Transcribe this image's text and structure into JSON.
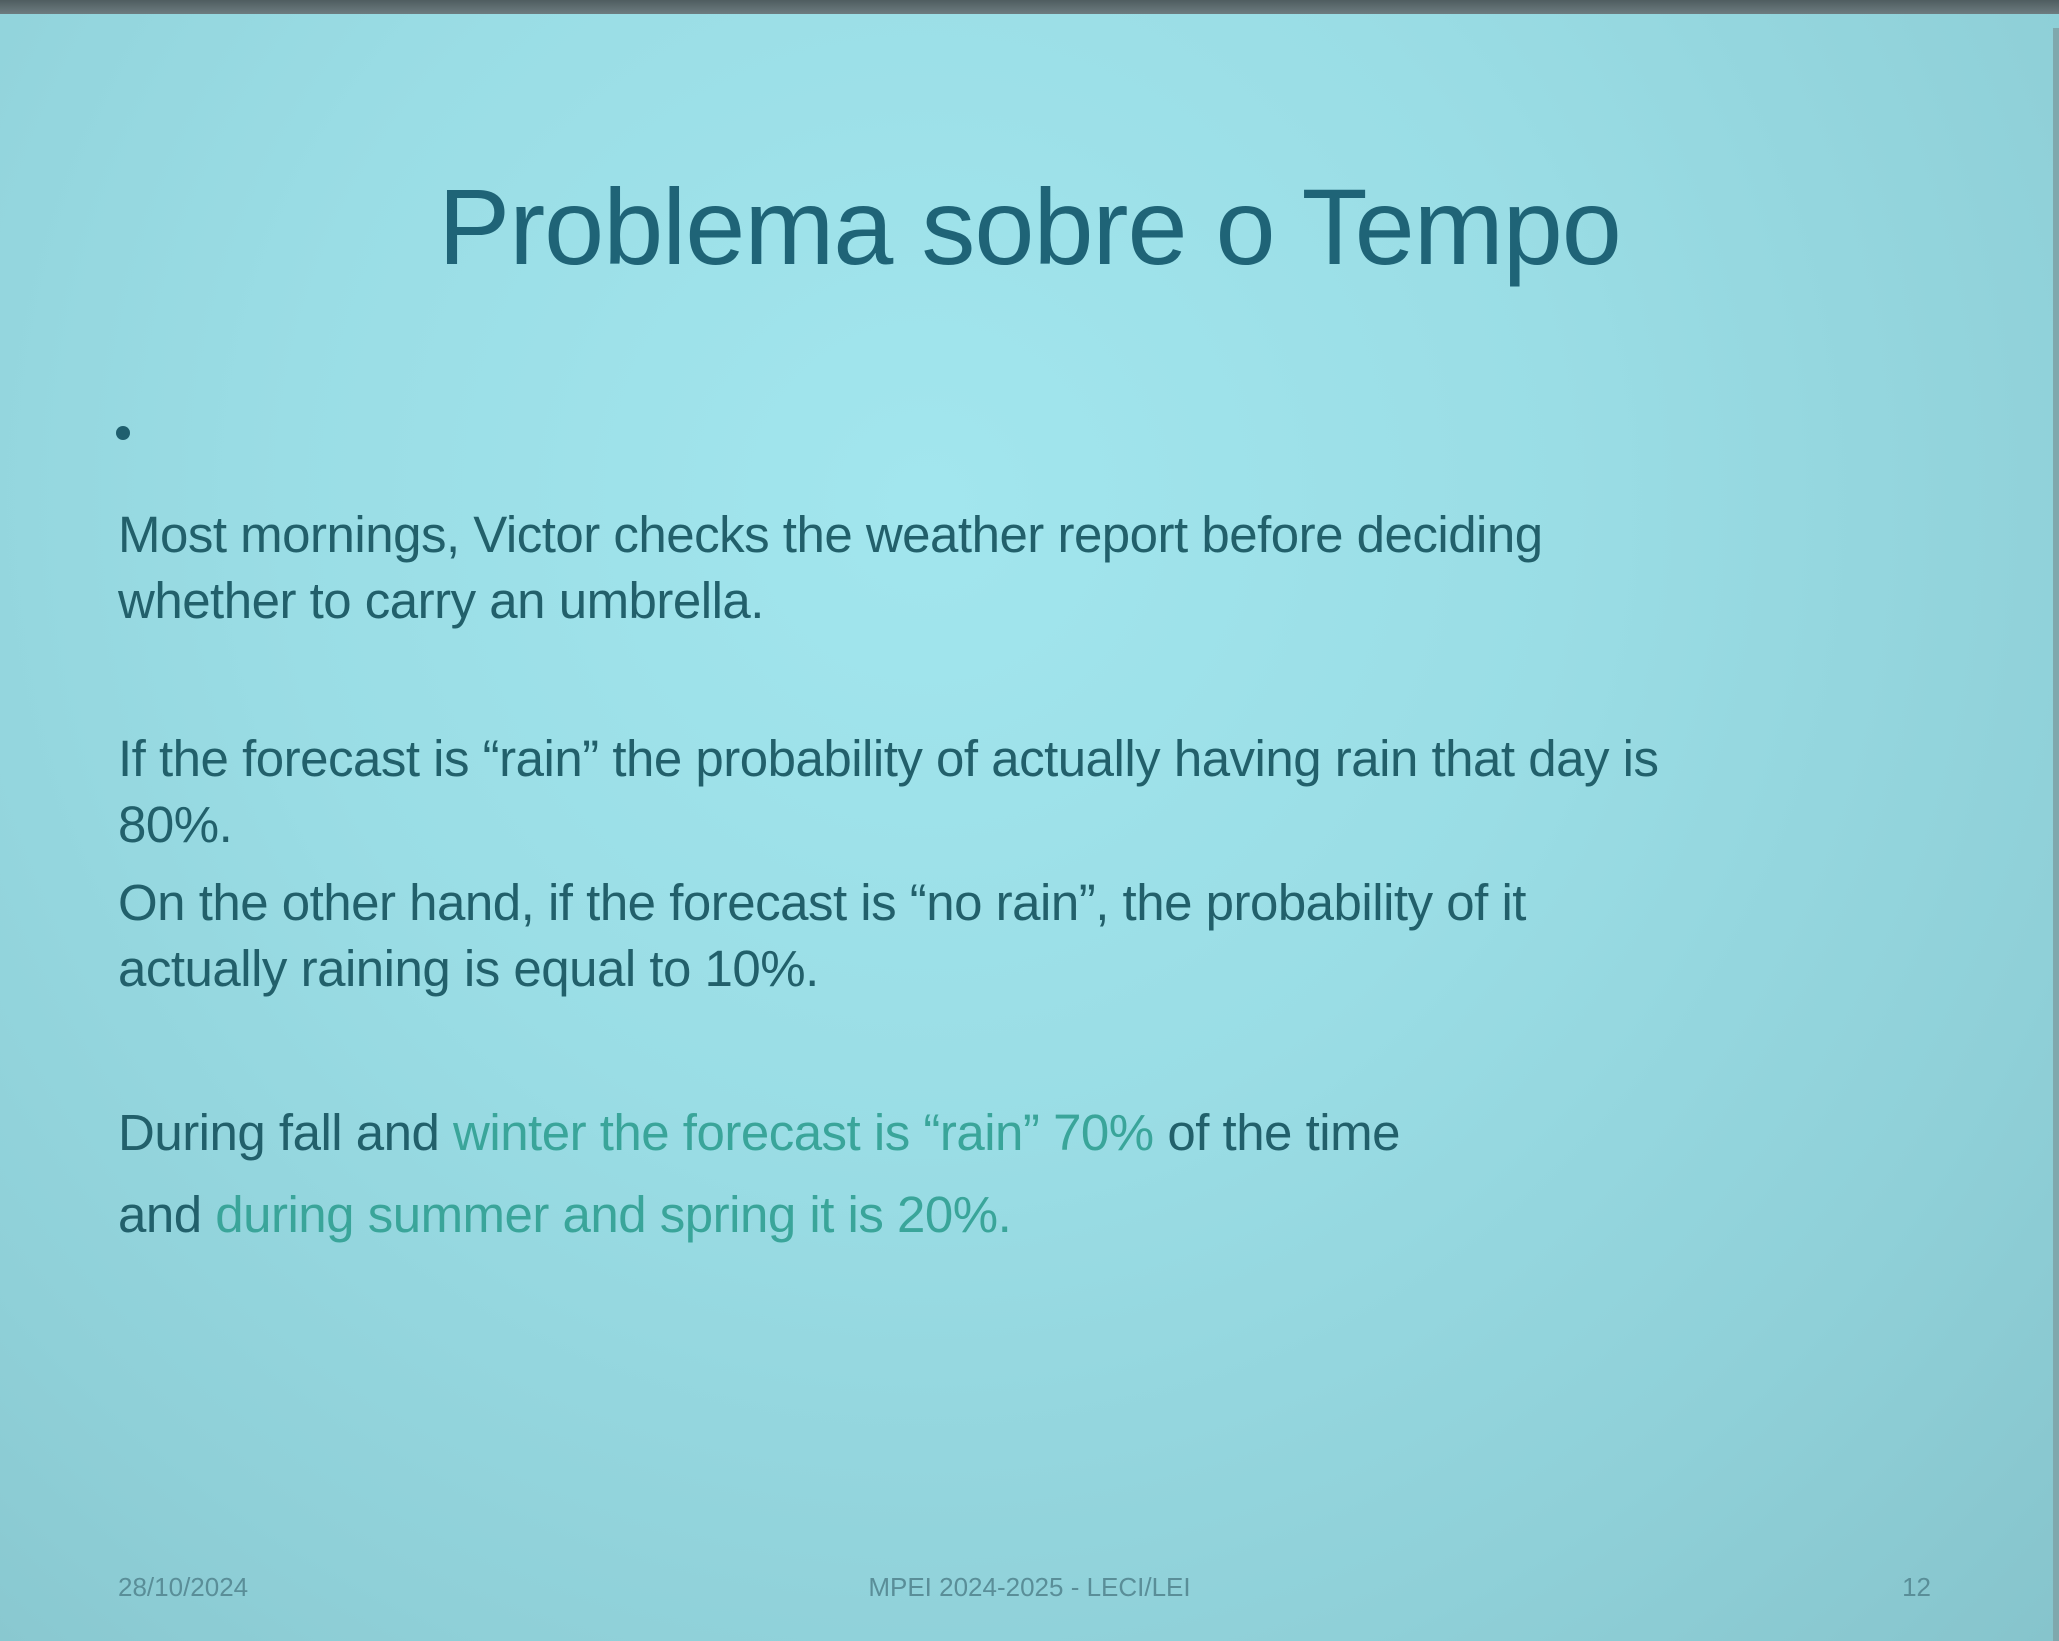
{
  "slide": {
    "title": "Problema sobre o Tempo",
    "paragraph1": {
      "line1": "Most mornings, Victor checks the weather report before deciding",
      "line2": "whether to carry an umbrella."
    },
    "paragraph2": {
      "line1": "If the forecast is “rain” the probability of actually having rain that day is",
      "line2": "80%."
    },
    "paragraph3": {
      "line1": "On the other hand, if the forecast is “no rain”, the probability of it",
      "line2": "actually raining is equal to 10%."
    },
    "paragraph4": {
      "line1_start": "During fall and ",
      "line1_highlight": "winter the forecast is “rain” 70%",
      "line1_end": " of the time",
      "line2_start": "and ",
      "line2_highlight": "during summer and spring it is 20%."
    },
    "highlight_color": "#3aa59a"
  },
  "footer": {
    "date": "28/10/2024",
    "course": "MPEI 2024-2025  -  LECI/LEI",
    "page_number": "12"
  }
}
